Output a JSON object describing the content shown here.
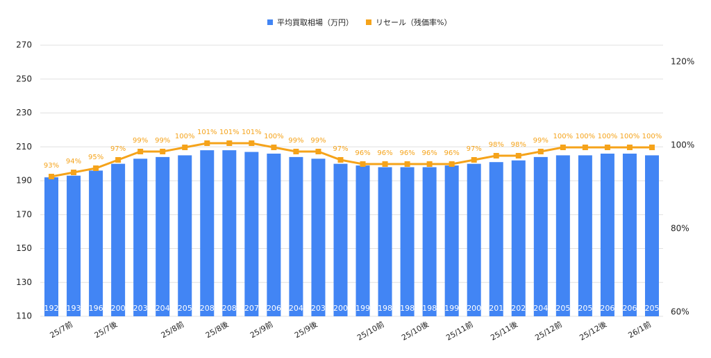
{
  "chart_data": {
    "type": "bar_line",
    "categories": [
      null,
      "25/7前",
      null,
      "25/7後",
      null,
      null,
      "25/8前",
      null,
      "25/8後",
      null,
      "25/9前",
      null,
      "25/9後",
      null,
      null,
      "25/10前",
      null,
      "25/10後",
      null,
      "25/11前",
      null,
      "25/11後",
      null,
      "25/12前",
      null,
      "25/12後",
      null,
      "26/1前"
    ],
    "series": [
      {
        "name": "平均買取相場（万円）",
        "color": "#4285f4",
        "type": "bar",
        "values": [
          192,
          193,
          196,
          200,
          203,
          204,
          205,
          208,
          208,
          207,
          206,
          204,
          203,
          200,
          199,
          198,
          198,
          198,
          199,
          200,
          201,
          202,
          204,
          205,
          205,
          206,
          206,
          205
        ]
      },
      {
        "name": "リセール（残価率%）",
        "color": "#f5a31a",
        "type": "line",
        "axis": "y2",
        "values": [
          93,
          94,
          95,
          97,
          99,
          99,
          100,
          101,
          101,
          101,
          100,
          99,
          99,
          97,
          96,
          96,
          96,
          96,
          96,
          97,
          98,
          98,
          99,
          100,
          100,
          100,
          100,
          100
        ],
        "value_labels": [
          "93%",
          "94%",
          "95%",
          "97%",
          "99%",
          "99%",
          "100%",
          "101%",
          "101%",
          "101%",
          "100%",
          "99%",
          "99%",
          "97%",
          "96%",
          "96%",
          "96%",
          "96%",
          "96%",
          "97%",
          "98%",
          "98%",
          "99%",
          "100%",
          "100%",
          "100%",
          "100%",
          "100%"
        ]
      }
    ],
    "ylim": [
      110,
      270
    ],
    "yticks": [
      110,
      130,
      150,
      170,
      190,
      210,
      230,
      250,
      270
    ],
    "y2lim": [
      59.5,
      124.5
    ],
    "y2ticks": [
      {
        "value": 60,
        "label": "60%"
      },
      {
        "value": 80,
        "label": "80%"
      },
      {
        "value": 100,
        "label": "100%"
      },
      {
        "value": 120,
        "label": "120%"
      }
    ],
    "grid": true,
    "legend": "top"
  }
}
